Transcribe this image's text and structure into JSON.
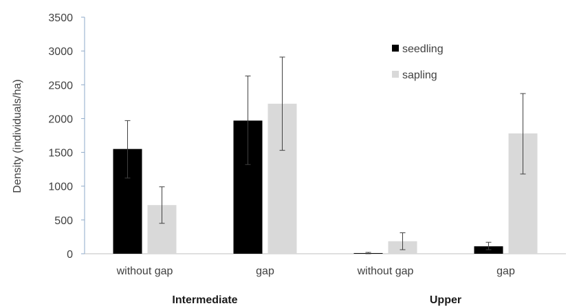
{
  "chart_data": {
    "type": "bar",
    "ylabel": "Density (individuals/ha)",
    "ylim": [
      0,
      3500
    ],
    "yticks": [
      0,
      500,
      1000,
      1500,
      2000,
      2500,
      3000,
      3500
    ],
    "categories": [
      "without gap",
      "gap",
      "without gap",
      "gap"
    ],
    "groups": [
      {
        "label": "Intermediate",
        "categories": [
          0,
          1
        ]
      },
      {
        "label": "Upper",
        "categories": [
          2,
          3
        ]
      }
    ],
    "series": [
      {
        "name": "seedling",
        "color": "#000000",
        "values": [
          1550,
          1970,
          10,
          110
        ],
        "error_low": [
          1120,
          1320,
          0,
          60
        ],
        "error_high": [
          1970,
          2630,
          20,
          170
        ]
      },
      {
        "name": "sapling",
        "color": "#d9d9d9",
        "values": [
          720,
          2220,
          185,
          1780
        ],
        "error_low": [
          450,
          1530,
          60,
          1180
        ],
        "error_high": [
          990,
          2910,
          310,
          2370
        ]
      }
    ],
    "legend_position": "top-right",
    "grid": false
  }
}
